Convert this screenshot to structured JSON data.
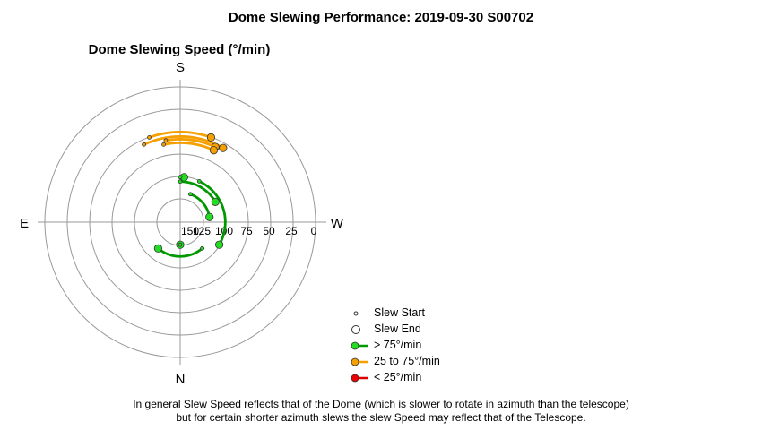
{
  "title": "Dome Slewing Performance: 2019-09-30 S00702",
  "chart_data": {
    "type": "polar",
    "subtitle": "Dome Slewing Speed (°/min)",
    "directions": {
      "top": "S",
      "bottom": "N",
      "left": "E",
      "right": "W"
    },
    "radial_axis": {
      "ticks": [
        "150",
        "125",
        "100",
        "75",
        "50",
        "25",
        "0"
      ],
      "inverted": true,
      "range": [
        150,
        0
      ]
    },
    "grid": true,
    "slews": [
      {
        "category": "25 to 75°/min",
        "speed": 55,
        "az_start": 155,
        "az_end": 210
      },
      {
        "category": "25 to 75°/min",
        "speed": 58,
        "az_start": 170,
        "az_end": 205
      },
      {
        "category": "25 to 75°/min",
        "speed": 62,
        "az_start": 168,
        "az_end": 205
      },
      {
        "category": "25 to 75°/min",
        "speed": 50,
        "az_start": 160,
        "az_end": 200
      },
      {
        "category": "> 75°/min",
        "speed": 100,
        "az_start": 180,
        "az_end": 185
      },
      {
        "category": "> 75°/min",
        "speed": 100,
        "az_start": 205,
        "az_end": 300
      },
      {
        "category": "> 75°/min",
        "speed": 105,
        "az_start": 180,
        "az_end": 240
      },
      {
        "category": "> 75°/min",
        "speed": 117,
        "az_start": 200,
        "az_end": 260
      },
      {
        "category": "> 75°/min",
        "speed": 112,
        "az_start": 320,
        "az_end": 40
      },
      {
        "category": "> 75°/min",
        "speed": 125,
        "az_start": 0,
        "az_end": 0
      }
    ],
    "legend_position": "bottom-right",
    "legend": [
      {
        "label": "Slew Start",
        "marker": "start"
      },
      {
        "label": "Slew End",
        "marker": "end"
      },
      {
        "label": "> 75°/min",
        "color": "#00cc00"
      },
      {
        "label": "25 to 75°/min",
        "color": "#f5a000"
      },
      {
        "label": "< 25°/min",
        "color": "#ee0000"
      }
    ]
  },
  "colors": {
    "fast": "#009900",
    "fast_fill": "#22dd22",
    "mid": "#f5a000",
    "mid_fill": "#f5a000",
    "slow": "#dd0000",
    "slow_fill": "#ee0000",
    "grid": "#999999"
  },
  "note_lines": [
    "In general Slew Speed reflects that of the Dome (which is slower to rotate in azimuth than the telescope)",
    "but for certain shorter azimuth slews the slew Speed may reflect that of the Telescope."
  ]
}
